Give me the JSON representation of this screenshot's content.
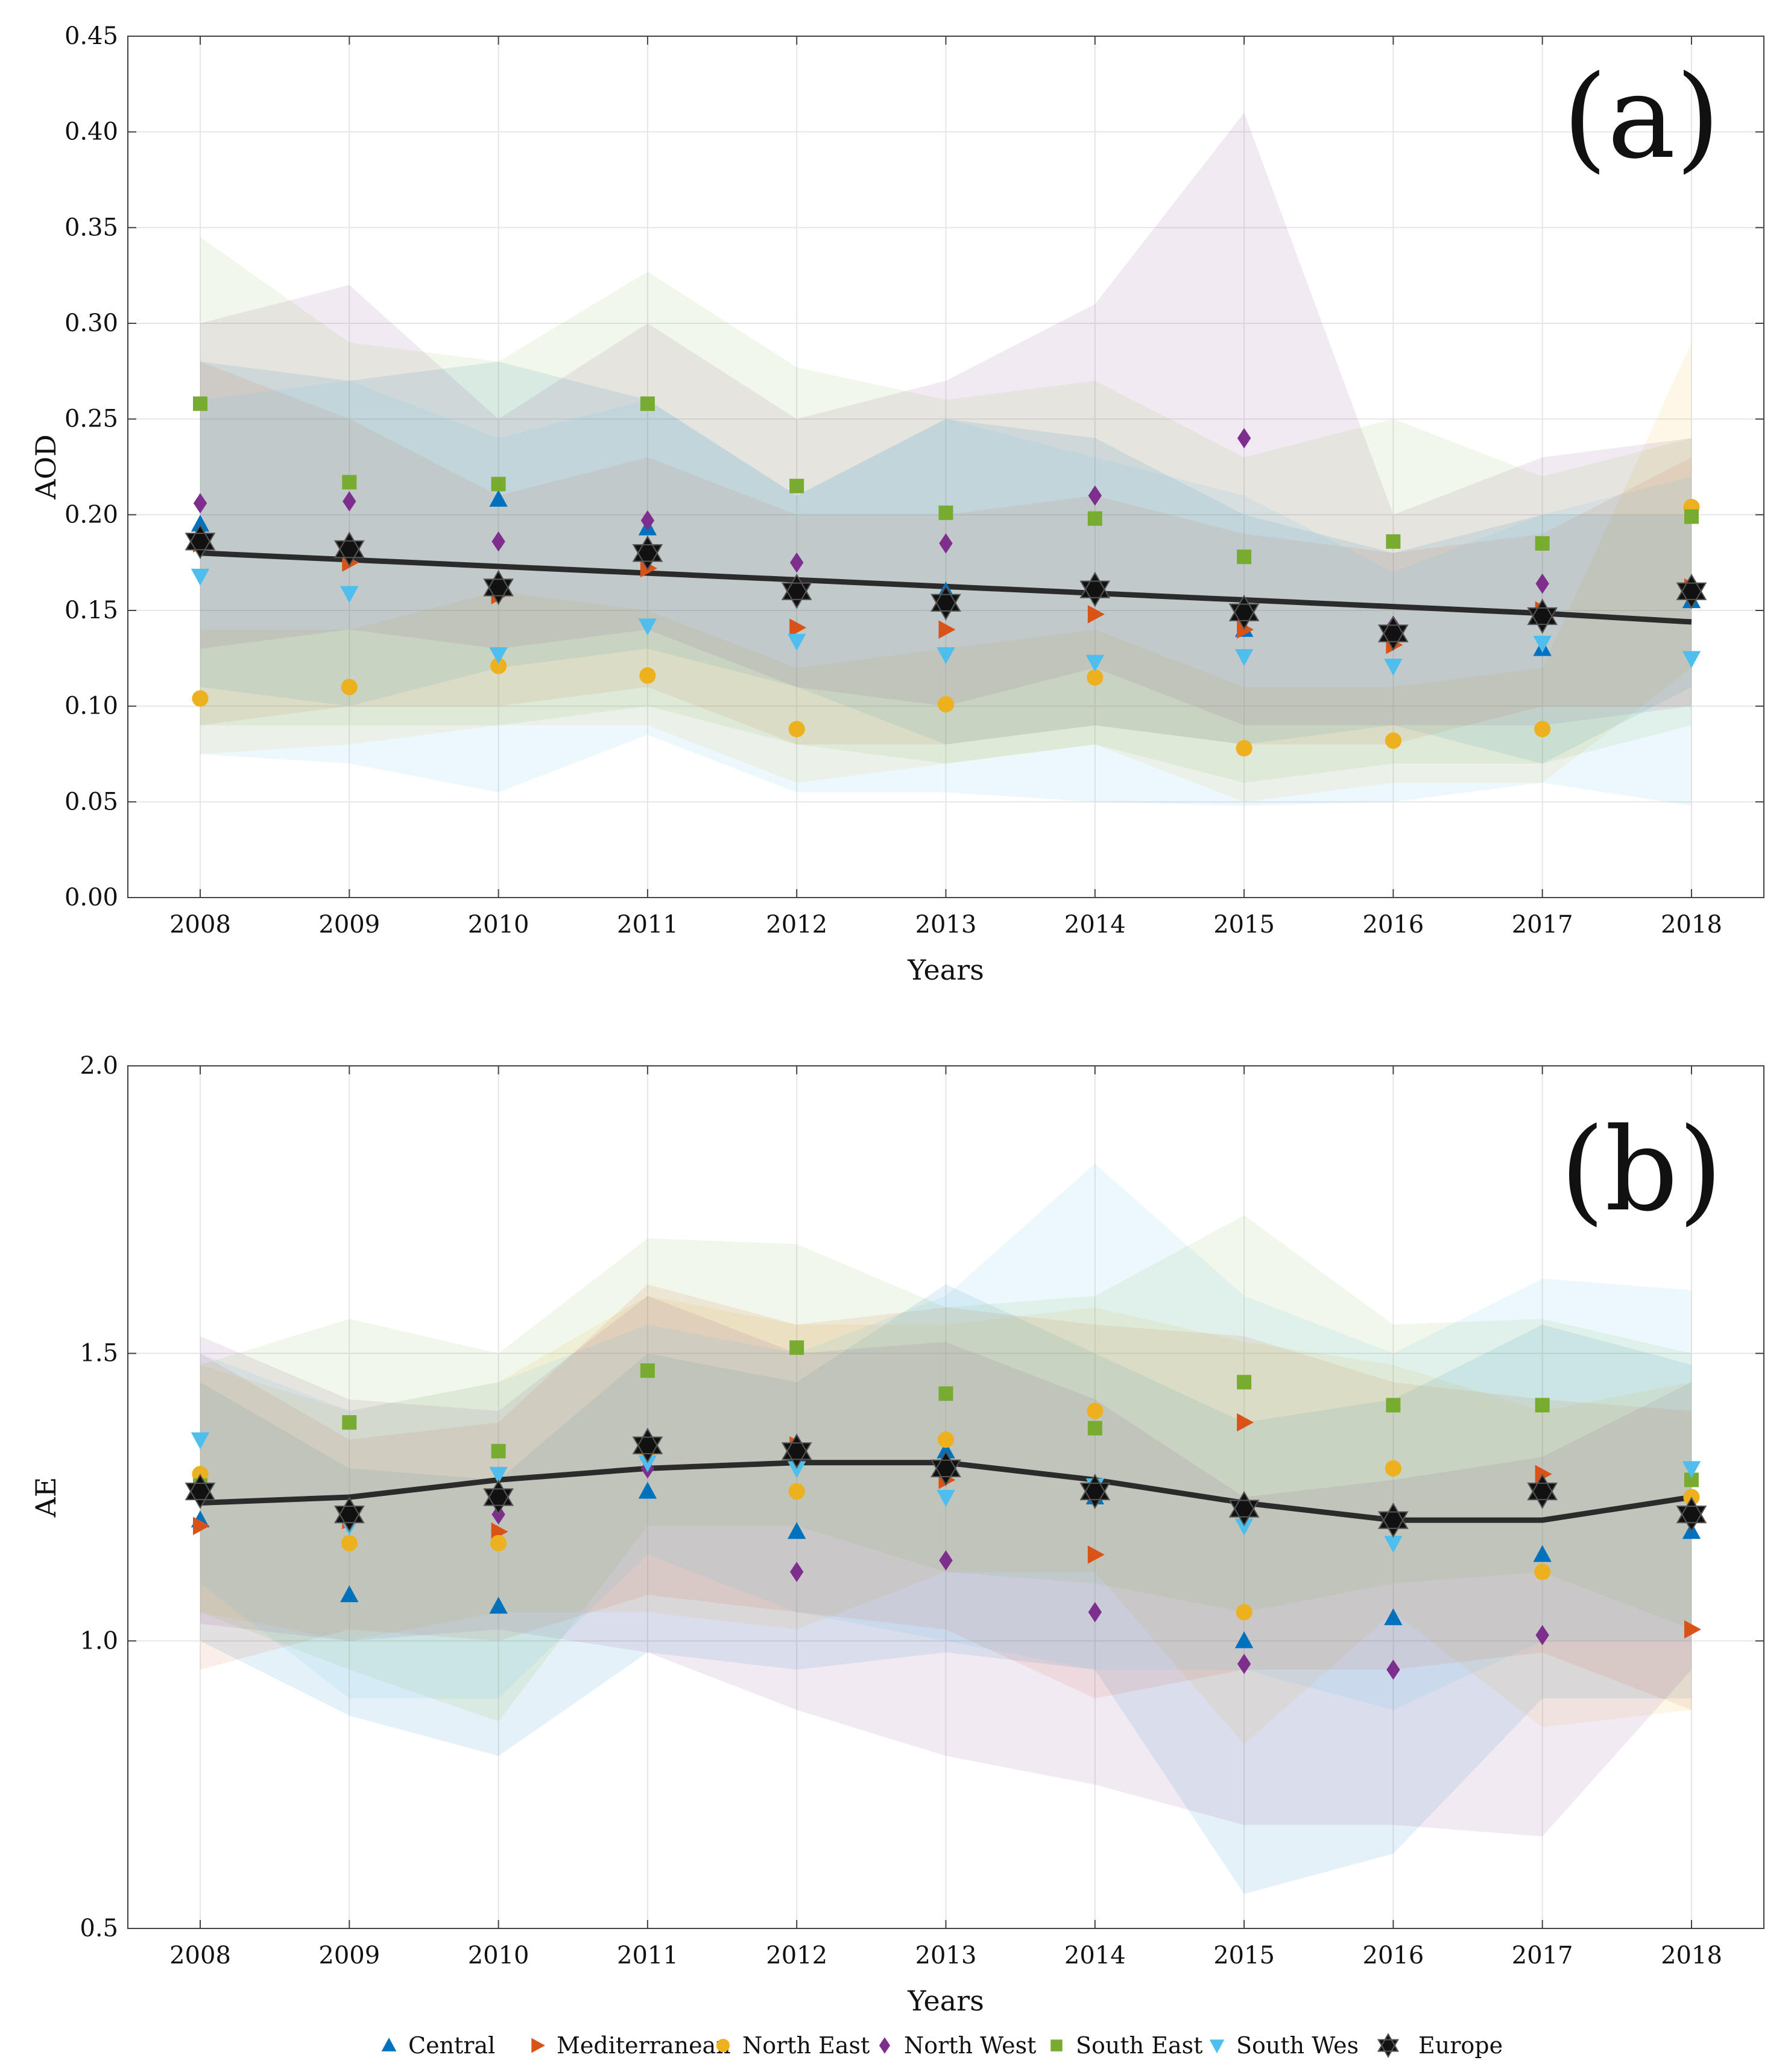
{
  "colors": {
    "Central": "#0072BD",
    "Mediterranean": "#D95319",
    "North East": "#EDB120",
    "North West": "#7E2F8E",
    "South East": "#77AC30",
    "South Wes": "#4DBEEE",
    "Europe": "#111111",
    "trend": "#2b2b2b"
  },
  "legend": [
    {
      "name": "Central",
      "icon": "triangle-up-icon"
    },
    {
      "name": "Mediterranean",
      "icon": "triangle-right-icon"
    },
    {
      "name": "North East",
      "icon": "circle-icon"
    },
    {
      "name": "North West",
      "icon": "diamond-icon"
    },
    {
      "name": "South East",
      "icon": "square-icon"
    },
    {
      "name": "South Wes",
      "icon": "triangle-down-icon"
    },
    {
      "name": "Europe",
      "icon": "hexagram-icon"
    }
  ],
  "chart_data": [
    {
      "type": "scatter",
      "panel_label": "(a)",
      "xlabel": "Years",
      "ylabel": "AOD",
      "ylim": [
        0,
        0.45
      ],
      "yticks": [
        "0.00",
        "0.05",
        "0.10",
        "0.15",
        "0.20",
        "0.25",
        "0.30",
        "0.35",
        "0.40",
        "0.45"
      ],
      "ytick_values": [
        0,
        0.05,
        0.1,
        0.15,
        0.2,
        0.25,
        0.3,
        0.35,
        0.4,
        0.45
      ],
      "x": [
        2008,
        2009,
        2010,
        2011,
        2012,
        2013,
        2014,
        2015,
        2016,
        2017,
        2018
      ],
      "xticks": [
        "2008",
        "2009",
        "2010",
        "2011",
        "2012",
        "2013",
        "2014",
        "2015",
        "2016",
        "2017",
        "2018"
      ],
      "grid": true,
      "series": [
        {
          "name": "Central",
          "values": [
            0.195,
            0.183,
            0.208,
            0.193,
            0.162,
            0.16,
            0.162,
            0.14,
            0.14,
            0.13,
            0.155
          ],
          "upper": [
            0.28,
            0.27,
            0.28,
            0.26,
            0.21,
            0.25,
            0.24,
            0.2,
            0.18,
            0.2,
            0.2
          ],
          "lower": [
            0.11,
            0.1,
            0.12,
            0.13,
            0.11,
            0.08,
            0.09,
            0.08,
            0.09,
            0.07,
            0.11
          ]
        },
        {
          "name": "Mediterranean",
          "values": [
            0.185,
            0.175,
            0.158,
            0.172,
            0.141,
            0.14,
            0.148,
            0.14,
            0.132,
            0.15,
            0.162
          ],
          "upper": [
            0.28,
            0.25,
            0.21,
            0.23,
            0.2,
            0.2,
            0.21,
            0.19,
            0.18,
            0.19,
            0.23
          ],
          "lower": [
            0.09,
            0.1,
            0.1,
            0.11,
            0.08,
            0.08,
            0.09,
            0.08,
            0.08,
            0.1,
            0.1
          ]
        },
        {
          "name": "North East",
          "values": [
            0.104,
            0.11,
            0.121,
            0.116,
            0.088,
            0.101,
            0.115,
            0.078,
            0.082,
            0.088,
            0.204
          ],
          "upper": [
            0.14,
            0.14,
            0.16,
            0.15,
            0.12,
            0.13,
            0.14,
            0.11,
            0.11,
            0.12,
            0.29
          ],
          "lower": [
            0.075,
            0.08,
            0.09,
            0.09,
            0.06,
            0.07,
            0.08,
            0.05,
            0.06,
            0.06,
            0.12
          ]
        },
        {
          "name": "North West",
          "values": [
            0.206,
            0.207,
            0.186,
            0.197,
            0.175,
            0.185,
            0.21,
            0.24,
            0.142,
            0.164,
            0.162
          ],
          "upper": [
            0.3,
            0.32,
            0.25,
            0.3,
            0.25,
            0.27,
            0.31,
            0.41,
            0.2,
            0.23,
            0.24
          ],
          "lower": [
            0.13,
            0.14,
            0.13,
            0.14,
            0.11,
            0.1,
            0.12,
            0.09,
            0.09,
            0.09,
            0.1
          ]
        },
        {
          "name": "South East",
          "values": [
            0.258,
            0.217,
            0.216,
            0.258,
            0.215,
            0.201,
            0.198,
            0.178,
            0.186,
            0.185,
            0.199
          ],
          "upper": [
            0.345,
            0.29,
            0.28,
            0.327,
            0.277,
            0.26,
            0.27,
            0.23,
            0.25,
            0.22,
            0.24
          ],
          "lower": [
            0.09,
            0.09,
            0.09,
            0.1,
            0.08,
            0.07,
            0.08,
            0.06,
            0.07,
            0.07,
            0.09
          ]
        },
        {
          "name": "South Wes",
          "values": [
            0.168,
            0.159,
            0.127,
            0.142,
            0.134,
            0.127,
            0.123,
            0.126,
            0.121,
            0.133,
            0.125
          ],
          "upper": [
            0.26,
            0.27,
            0.24,
            0.26,
            0.21,
            0.25,
            0.23,
            0.21,
            0.17,
            0.2,
            0.22
          ],
          "lower": [
            0.075,
            0.07,
            0.055,
            0.085,
            0.055,
            0.055,
            0.05,
            0.048,
            0.05,
            0.06,
            0.048
          ]
        },
        {
          "name": "Europe",
          "values": [
            0.186,
            0.182,
            0.162,
            0.18,
            0.16,
            0.154,
            0.161,
            0.149,
            0.138,
            0.147,
            0.16
          ]
        }
      ],
      "trend": {
        "name": "Europe trend",
        "values": [
          0.18,
          0.1765,
          0.173,
          0.1695,
          0.166,
          0.1625,
          0.159,
          0.1555,
          0.152,
          0.1485,
          0.144
        ]
      }
    },
    {
      "type": "scatter",
      "panel_label": "(b)",
      "xlabel": "Years",
      "ylabel": "AE",
      "ylim": [
        0.5,
        2.0
      ],
      "yticks": [
        "0.5",
        "1.0",
        "1.5",
        "2.0"
      ],
      "ytick_values": [
        0.5,
        1.0,
        1.5,
        2.0
      ],
      "x": [
        2008,
        2009,
        2010,
        2011,
        2012,
        2013,
        2014,
        2015,
        2016,
        2017,
        2018
      ],
      "xticks": [
        "2008",
        "2009",
        "2010",
        "2011",
        "2012",
        "2013",
        "2014",
        "2015",
        "2016",
        "2017",
        "2018"
      ],
      "grid": true,
      "series": [
        {
          "name": "Central",
          "values": [
            1.21,
            1.08,
            1.06,
            1.26,
            1.19,
            1.33,
            1.25,
            1.0,
            1.04,
            1.15,
            1.19
          ],
          "upper": [
            1.45,
            1.3,
            1.28,
            1.5,
            1.45,
            1.62,
            1.5,
            1.38,
            1.42,
            1.55,
            1.48
          ],
          "lower": [
            1.0,
            0.87,
            0.8,
            0.98,
            0.95,
            0.98,
            0.95,
            0.56,
            0.63,
            0.9,
            0.9
          ]
        },
        {
          "name": "Mediterranean",
          "values": [
            1.2,
            1.21,
            1.19,
            1.33,
            1.34,
            1.28,
            1.15,
            1.38,
            1.21,
            1.29,
            1.02
          ],
          "upper": [
            1.5,
            1.35,
            1.38,
            1.62,
            1.55,
            1.58,
            1.55,
            1.53,
            1.45,
            1.42,
            1.4
          ],
          "lower": [
            0.95,
            1.02,
            1.0,
            1.08,
            1.05,
            1.02,
            0.9,
            0.95,
            0.95,
            0.98,
            0.88
          ]
        },
        {
          "name": "North East",
          "values": [
            1.29,
            1.17,
            1.17,
            1.33,
            1.26,
            1.35,
            1.4,
            1.05,
            1.3,
            1.12,
            1.25
          ],
          "upper": [
            1.48,
            1.4,
            1.45,
            1.6,
            1.55,
            1.55,
            1.58,
            1.52,
            1.48,
            1.4,
            1.45
          ],
          "lower": [
            1.05,
            1.0,
            1.05,
            1.05,
            1.02,
            1.12,
            1.12,
            0.82,
            1.05,
            0.85,
            0.88
          ]
        },
        {
          "name": "North West",
          "values": [
            1.25,
            1.22,
            1.22,
            1.3,
            1.12,
            1.14,
            1.05,
            0.96,
            0.95,
            1.01,
            1.22
          ],
          "upper": [
            1.53,
            1.42,
            1.4,
            1.6,
            1.5,
            1.52,
            1.42,
            1.25,
            1.28,
            1.32,
            1.45
          ],
          "lower": [
            1.03,
            1.0,
            1.02,
            0.98,
            0.88,
            0.8,
            0.75,
            0.68,
            0.68,
            0.66,
            0.95
          ]
        },
        {
          "name": "South East",
          "values": [
            1.27,
            1.38,
            1.33,
            1.47,
            1.51,
            1.43,
            1.37,
            1.45,
            1.41,
            1.41,
            1.28
          ],
          "upper": [
            1.48,
            1.56,
            1.5,
            1.7,
            1.69,
            1.58,
            1.6,
            1.74,
            1.55,
            1.56,
            1.5
          ],
          "lower": [
            1.05,
            0.95,
            0.86,
            1.2,
            1.2,
            1.12,
            1.1,
            1.05,
            1.1,
            1.12,
            1.02
          ]
        },
        {
          "name": "South Wes",
          "values": [
            1.35,
            1.2,
            1.29,
            1.31,
            1.3,
            1.25,
            1.27,
            1.2,
            1.17,
            1.26,
            1.3
          ],
          "upper": [
            1.5,
            1.4,
            1.45,
            1.55,
            1.5,
            1.6,
            1.83,
            1.6,
            1.5,
            1.63,
            1.61
          ],
          "lower": [
            1.1,
            0.9,
            0.9,
            1.15,
            1.05,
            1.0,
            0.95,
            0.95,
            0.88,
            1.0,
            1.0
          ]
        },
        {
          "name": "Europe",
          "values": [
            1.26,
            1.22,
            1.25,
            1.34,
            1.33,
            1.3,
            1.26,
            1.23,
            1.21,
            1.26,
            1.22
          ]
        }
      ],
      "trend": {
        "name": "Europe trend",
        "values": [
          1.24,
          1.25,
          1.28,
          1.3,
          1.31,
          1.31,
          1.28,
          1.24,
          1.21,
          1.21,
          1.25
        ]
      }
    }
  ]
}
